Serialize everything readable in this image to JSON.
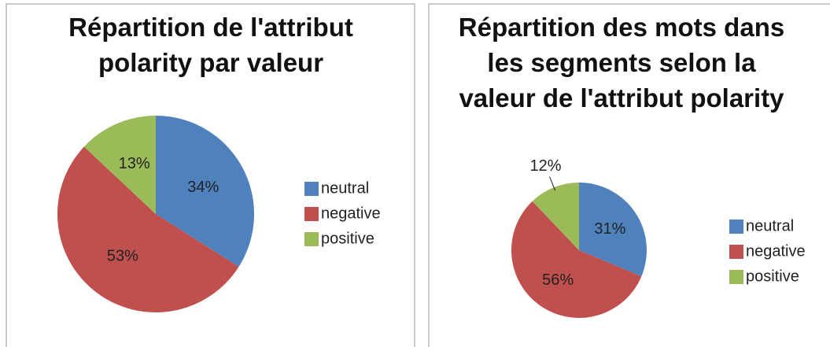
{
  "chart_data": [
    {
      "type": "pie",
      "title": "Répartition de l'attribut polarity par valeur",
      "categories": [
        "neutral",
        "negative",
        "positive"
      ],
      "values": [
        34,
        53,
        13
      ],
      "value_labels": [
        "34%",
        "53%",
        "13%"
      ],
      "colors": [
        "#4f81bd",
        "#c0504d",
        "#9bbb59"
      ],
      "legend": "right"
    },
    {
      "type": "pie",
      "title": "Répartition des mots dans les segments selon la valeur de l'attribut polarity",
      "categories": [
        "neutral",
        "negative",
        "positive"
      ],
      "values": [
        31,
        56,
        12
      ],
      "value_labels": [
        "31%",
        "56%",
        "12%"
      ],
      "colors": [
        "#4f81bd",
        "#c0504d",
        "#9bbb59"
      ],
      "legend": "right"
    }
  ]
}
